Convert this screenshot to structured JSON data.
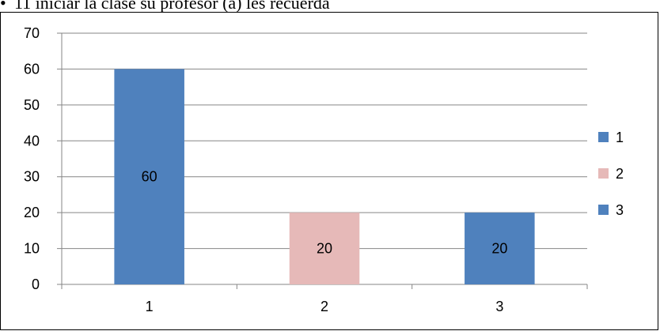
{
  "caption": {
    "marker": "•",
    "text": "11 iniciar la clase su profesor (a) les recuerda"
  },
  "chart_data": {
    "type": "bar",
    "title": "",
    "xlabel": "",
    "ylabel": "",
    "categories": [
      "1",
      "2",
      "3"
    ],
    "values": [
      60,
      20,
      20
    ],
    "data_labels": [
      "60",
      "20",
      "20"
    ],
    "colors": [
      "#4f81bd",
      "#e6b9b8",
      "#4f81bd"
    ],
    "ylim": [
      0,
      70
    ],
    "yticks": [
      0,
      10,
      20,
      30,
      40,
      50,
      60,
      70
    ],
    "grid": true,
    "legend": {
      "position": "right",
      "entries": [
        {
          "label": "1",
          "color": "#4f81bd"
        },
        {
          "label": "2",
          "color": "#e6b9b8"
        },
        {
          "label": "3",
          "color": "#4f81bd"
        }
      ]
    }
  }
}
